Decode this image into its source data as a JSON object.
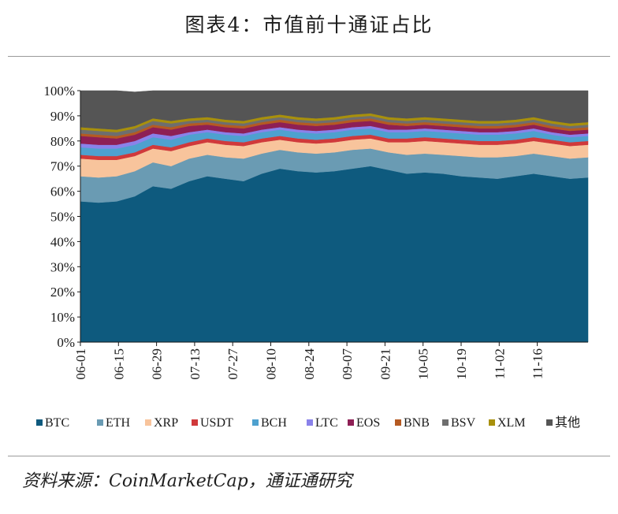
{
  "title": "图表4：市值前十通证占比",
  "source": "资料来源：CoinMarketCap，通证通研究",
  "colors": {
    "BTC": "#0e5a7e",
    "ETH": "#6a9bb3",
    "XRP": "#f8c49c",
    "USDT": "#d0393b",
    "BCH": "#4ea1cf",
    "LTC": "#8a82ea",
    "EOS": "#8e1f55",
    "BNB": "#b55a22",
    "BSV": "#6e6e6e",
    "XLM": "#a8900c",
    "其他": "#555555"
  },
  "chart_data": {
    "type": "area",
    "stacked": true,
    "title": "图表4：市值前十通证占比",
    "xlabel": "",
    "ylabel": "",
    "ylim": [
      0,
      100
    ],
    "yticks": [
      "0%",
      "10%",
      "20%",
      "30%",
      "40%",
      "50%",
      "60%",
      "70%",
      "80%",
      "90%",
      "100%"
    ],
    "x_tick_labels": [
      "06-01",
      "06-15",
      "06-29",
      "07-13",
      "07-27",
      "08-10",
      "08-24",
      "09-07",
      "09-21",
      "10-05",
      "10-19",
      "11-02",
      "11-16"
    ],
    "legend_position": "bottom",
    "x": [
      0,
      7,
      14,
      21,
      28,
      35,
      42,
      49,
      56,
      63,
      70,
      77,
      84,
      91,
      98,
      105,
      112,
      119,
      126,
      133,
      140,
      147,
      154,
      161,
      168,
      175,
      182,
      189,
      196
    ],
    "series": [
      {
        "name": "BTC",
        "values": [
          56,
          55.5,
          56,
          58,
          62,
          61,
          64,
          66,
          65,
          64,
          67,
          69,
          68,
          67.5,
          68,
          69,
          70,
          68.5,
          67,
          67.5,
          67,
          66,
          65.5,
          65,
          66,
          67,
          66,
          65,
          65.5
        ]
      },
      {
        "name": "ETH",
        "values": [
          10,
          10,
          10,
          10,
          9.5,
          9,
          9,
          8.5,
          8.5,
          9,
          8,
          7.5,
          7.5,
          7.5,
          7.5,
          7.5,
          7,
          7,
          7.5,
          7.5,
          7.5,
          8,
          8,
          8.5,
          8,
          8,
          8,
          8,
          8
        ]
      },
      {
        "name": "XRP",
        "values": [
          7,
          7,
          6.5,
          6,
          5.5,
          6,
          5,
          5,
          5,
          5,
          4.5,
          4,
          4,
          4,
          4,
          4,
          4,
          4,
          5,
          5,
          5,
          5,
          5,
          5,
          5,
          5,
          5,
          5,
          5
        ]
      },
      {
        "name": "USDT",
        "values": [
          1.5,
          1.5,
          1.5,
          1.5,
          1.5,
          1.5,
          1.5,
          1.5,
          1.5,
          1.5,
          1.5,
          1.5,
          1.5,
          1.5,
          1.5,
          1.5,
          1.5,
          1.5,
          1.5,
          1.5,
          1.5,
          1.5,
          1.5,
          1.5,
          1.5,
          1.5,
          1.5,
          1.5,
          1.5
        ]
      },
      {
        "name": "BCH",
        "values": [
          3,
          3,
          3,
          3,
          3,
          3,
          3,
          2.5,
          2.5,
          2.5,
          2.5,
          2.5,
          2.5,
          2.5,
          2.5,
          2.5,
          2.5,
          2.5,
          2.5,
          2.5,
          2.5,
          2.5,
          2.5,
          2.5,
          2.5,
          2.5,
          2,
          2,
          2
        ]
      },
      {
        "name": "LTC",
        "values": [
          1.5,
          1.5,
          1.5,
          1.5,
          1.5,
          1.5,
          1,
          1,
          1,
          1,
          1,
          1,
          1,
          1,
          1,
          1,
          1,
          1,
          1,
          1,
          1,
          1,
          1,
          1,
          1,
          1,
          1,
          1,
          1
        ]
      },
      {
        "name": "EOS",
        "values": [
          3,
          3,
          2.5,
          2.5,
          2.5,
          2.5,
          2.5,
          2,
          2,
          2,
          2,
          2,
          2,
          2,
          2,
          2,
          2,
          2,
          1.5,
          1.5,
          1.5,
          1.5,
          1.5,
          1.5,
          1.5,
          1.5,
          1.5,
          1.5,
          1.5
        ]
      },
      {
        "name": "BNB",
        "values": [
          1,
          1,
          1,
          1,
          1,
          1,
          1,
          1,
          1,
          1,
          1,
          1,
          1,
          1,
          1,
          1,
          1,
          1,
          1,
          1,
          1,
          1,
          1,
          1,
          1,
          1,
          1,
          1,
          1
        ]
      },
      {
        "name": "BSV",
        "values": [
          1.5,
          1.5,
          1.5,
          1.5,
          1.5,
          1.5,
          1,
          1,
          1,
          1,
          1,
          1,
          1,
          1,
          1,
          1,
          1,
          1,
          1,
          1,
          1,
          1,
          1,
          1,
          1,
          1,
          1,
          1,
          1
        ]
      },
      {
        "name": "XLM",
        "values": [
          1,
          1,
          1,
          1,
          1,
          1,
          1,
          1,
          1,
          1,
          1,
          1,
          1,
          1,
          1,
          1,
          1,
          1,
          1,
          1,
          1,
          1,
          1,
          1,
          1,
          1,
          1,
          1,
          1
        ]
      },
      {
        "name": "其他",
        "values": [
          14.5,
          15,
          15.5,
          13.5,
          11.5,
          12,
          14,
          14.5,
          15.5,
          15,
          15.5,
          14.5,
          15.5,
          16,
          15.5,
          14.5,
          14,
          15,
          14.5,
          14,
          14.5,
          14.5,
          15,
          15,
          14.5,
          13.5,
          15.5,
          16.5,
          16
        ]
      }
    ]
  }
}
